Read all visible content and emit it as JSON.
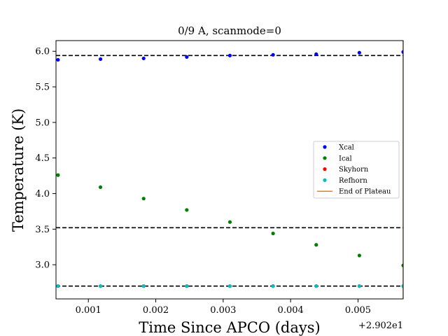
{
  "chart_data": {
    "type": "scatter",
    "title": "0/9 A, scanmode=0",
    "xlabel": "Time Since APCO (days)",
    "ylabel": "Temperature (K)",
    "x_offset_label": "+2.902e1",
    "xlim": [
      0.00052,
      0.00567
    ],
    "ylim": [
      2.52,
      6.15
    ],
    "x_ticks": [
      0.001,
      0.002,
      0.003,
      0.004,
      0.005
    ],
    "x_tick_labels": [
      "0.001",
      "0.002",
      "0.003",
      "0.004",
      "0.005"
    ],
    "y_ticks": [
      3.0,
      3.5,
      4.0,
      4.5,
      5.0,
      5.5,
      6.0
    ],
    "y_tick_labels": [
      "3.0",
      "3.5",
      "4.0",
      "4.5",
      "5.0",
      "5.5",
      "6.0"
    ],
    "x": [
      0.00055,
      0.00118,
      0.00182,
      0.00246,
      0.0031,
      0.00374,
      0.00438,
      0.00502,
      0.00567
    ],
    "series": [
      {
        "name": "Xcal",
        "color": "#0000ff",
        "values": [
          5.88,
          5.89,
          5.9,
          5.92,
          5.94,
          5.95,
          5.96,
          5.98,
          5.99
        ]
      },
      {
        "name": "Ical",
        "color": "#008000",
        "values": [
          4.26,
          4.09,
          3.93,
          3.77,
          3.6,
          3.44,
          3.28,
          3.13,
          2.99
        ]
      },
      {
        "name": "Skyhorn",
        "color": "#ff0000",
        "values": [
          2.7,
          2.7,
          2.7,
          2.7,
          2.7,
          2.7,
          2.7,
          2.7,
          2.7
        ]
      },
      {
        "name": "Refhorn",
        "color": "#00bfbf",
        "values": [
          2.7,
          2.7,
          2.7,
          2.7,
          2.7,
          2.7,
          2.7,
          2.7,
          2.7
        ]
      }
    ],
    "hlines": [
      5.94,
      3.52,
      2.7
    ],
    "end_of_plateau": {
      "name": "End of Plateau",
      "color": "#ff7f0e",
      "x": 0.00567
    },
    "legend_position": "center-right",
    "grid": false
  }
}
